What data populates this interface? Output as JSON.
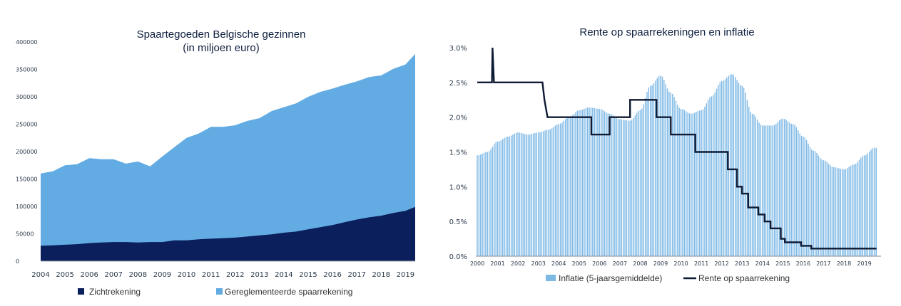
{
  "chart_data": [
    {
      "type": "area",
      "stacked": true,
      "title": "Spaartegoeden  Belgische gezinnen",
      "subtitle": "(in miljoen euro)",
      "x": [
        2004.0,
        2004.5,
        2005.0,
        2005.5,
        2006.0,
        2006.5,
        2007.0,
        2007.5,
        2008.0,
        2008.5,
        2009.0,
        2009.5,
        2010.0,
        2010.5,
        2011.0,
        2011.5,
        2012.0,
        2012.5,
        2013.0,
        2013.5,
        2014.0,
        2014.5,
        2015.0,
        2015.5,
        2016.0,
        2016.5,
        2017.0,
        2017.5,
        2018.0,
        2018.5,
        2019.0,
        2019.4
      ],
      "series": [
        {
          "name": "Zichtrekening",
          "color": "#0a1f5c",
          "values": [
            28000,
            29000,
            30000,
            31000,
            33000,
            34000,
            35000,
            35000,
            34000,
            35000,
            35000,
            38000,
            38000,
            40000,
            41000,
            42000,
            43000,
            45000,
            47000,
            49000,
            52000,
            54000,
            58000,
            62000,
            66000,
            71000,
            76000,
            80000,
            83000,
            88000,
            92000,
            99000
          ]
        },
        {
          "name": "Gereglementeerde spaarrekening",
          "color": "#62ace3",
          "values": [
            132000,
            135000,
            145000,
            146000,
            155000,
            152000,
            151000,
            143000,
            148000,
            138000,
            156000,
            170000,
            187000,
            193000,
            204000,
            203000,
            205000,
            211000,
            214000,
            225000,
            229000,
            234000,
            242000,
            247000,
            249000,
            251000,
            252000,
            256000,
            256000,
            263000,
            267000,
            279000
          ]
        }
      ],
      "yticks": [
        0,
        50000,
        100000,
        150000,
        200000,
        250000,
        300000,
        350000,
        400000
      ],
      "ylim": [
        0,
        400000
      ],
      "xticks": [
        "2004",
        "2005",
        "2006",
        "2007",
        "2008",
        "2009",
        "2010",
        "2011",
        "2012",
        "2013",
        "2014",
        "2015",
        "2016",
        "2017",
        "2018",
        "2019"
      ],
      "legend": "bottom"
    },
    {
      "type": "bar+line",
      "title": "Rente op spaarrekeningen en inflatie",
      "bar_series": {
        "name": "Inflatie (5-jaarsgemiddelde)",
        "color": "#7eb9e6",
        "x": [
          2000.0,
          2000.5,
          2001.0,
          2001.5,
          2002.0,
          2002.5,
          2003.0,
          2003.5,
          2004.0,
          2004.5,
          2005.0,
          2005.5,
          2006.0,
          2006.5,
          2007.0,
          2007.5,
          2008.0,
          2008.5,
          2009.0,
          2009.5,
          2010.0,
          2010.5,
          2011.0,
          2011.5,
          2012.0,
          2012.5,
          2013.0,
          2013.5,
          2014.0,
          2014.5,
          2015.0,
          2015.5,
          2016.0,
          2016.5,
          2017.0,
          2017.5,
          2018.0,
          2018.5,
          2019.0,
          2019.5
        ],
        "values": [
          1.45,
          1.5,
          1.65,
          1.72,
          1.78,
          1.75,
          1.78,
          1.82,
          1.9,
          2.0,
          2.1,
          2.14,
          2.12,
          2.05,
          1.97,
          1.95,
          2.1,
          2.45,
          2.6,
          2.35,
          2.12,
          2.05,
          2.1,
          2.3,
          2.52,
          2.62,
          2.45,
          2.05,
          1.88,
          1.88,
          1.98,
          1.9,
          1.72,
          1.52,
          1.38,
          1.28,
          1.25,
          1.32,
          1.45,
          1.56
        ]
      },
      "line_series": {
        "name": "Rente op spaarrekening",
        "color": "#0e1a33",
        "points": [
          [
            2000.0,
            2.5
          ],
          [
            2000.72,
            2.5
          ],
          [
            2000.75,
            3.0
          ],
          [
            2000.82,
            2.5
          ],
          [
            2003.2,
            2.5
          ],
          [
            2003.3,
            2.25
          ],
          [
            2003.45,
            2.0
          ],
          [
            2005.6,
            2.0
          ],
          [
            2005.6,
            1.75
          ],
          [
            2006.5,
            1.75
          ],
          [
            2006.5,
            2.0
          ],
          [
            2007.5,
            2.0
          ],
          [
            2007.5,
            2.25
          ],
          [
            2008.8,
            2.25
          ],
          [
            2008.8,
            2.0
          ],
          [
            2009.5,
            2.0
          ],
          [
            2009.5,
            1.75
          ],
          [
            2010.7,
            1.75
          ],
          [
            2010.7,
            1.5
          ],
          [
            2012.3,
            1.5
          ],
          [
            2012.3,
            1.25
          ],
          [
            2012.75,
            1.25
          ],
          [
            2012.75,
            1.0
          ],
          [
            2013.0,
            1.0
          ],
          [
            2013.0,
            0.9
          ],
          [
            2013.3,
            0.9
          ],
          [
            2013.3,
            0.7
          ],
          [
            2013.8,
            0.7
          ],
          [
            2013.8,
            0.6
          ],
          [
            2014.1,
            0.6
          ],
          [
            2014.1,
            0.5
          ],
          [
            2014.4,
            0.5
          ],
          [
            2014.4,
            0.4
          ],
          [
            2014.9,
            0.4
          ],
          [
            2014.9,
            0.25
          ],
          [
            2015.1,
            0.25
          ],
          [
            2015.1,
            0.2
          ],
          [
            2015.9,
            0.2
          ],
          [
            2015.9,
            0.15
          ],
          [
            2016.4,
            0.15
          ],
          [
            2016.4,
            0.11
          ],
          [
            2019.6,
            0.11
          ]
        ]
      },
      "yticks": [
        "0.0%",
        "0.5%",
        "1.0%",
        "1.5%",
        "2.0%",
        "2.5%",
        "3.0%"
      ],
      "ylim": [
        0,
        3.0
      ],
      "xticks": [
        "2000",
        "2001",
        "2002",
        "2003",
        "2004",
        "2005",
        "2006",
        "2007",
        "2008",
        "2009",
        "2010",
        "2011",
        "2012",
        "2013",
        "2014",
        "2015",
        "2016",
        "2017",
        "2018",
        "2019"
      ],
      "legend": "bottom"
    }
  ]
}
